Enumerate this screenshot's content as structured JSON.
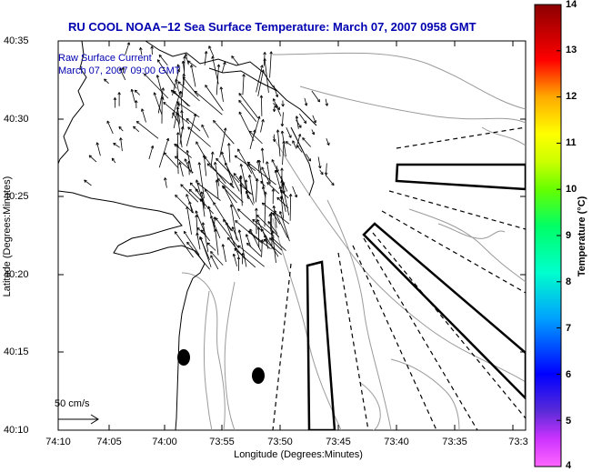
{
  "title": "RU COOL  NOAA−12  Sea Surface Temperature:  March 07, 2007 0958 GMT",
  "annotation": {
    "line1": "Raw Surface Current",
    "line2": "March 07, 2007 09:00 GMT"
  },
  "x_axis": {
    "label": "Longitude (Degrees:Minutes)",
    "ticks": [
      "74:10",
      "74:05",
      "74:00",
      "73:55",
      "73:50",
      "73:45",
      "73:40",
      "73:35",
      "73:3"
    ]
  },
  "y_axis": {
    "label": "Latitude (Degrees:Minutes)",
    "ticks": [
      "40:35",
      "40:30",
      "40:25",
      "40:20",
      "40:15",
      "40:10"
    ]
  },
  "scale_arrow_label": "50 cm/s",
  "colorbar": {
    "label": "Temperature (°C)",
    "ticks": [
      "14",
      "13",
      "12",
      "11",
      "10",
      "9",
      "8",
      "7",
      "6",
      "5",
      "4"
    ],
    "min": 4,
    "max": 14
  },
  "colors": {
    "title": "#0000b0",
    "coast": "#000000",
    "bathymetry": "#9a9a9a",
    "vectors": "#000000"
  }
}
